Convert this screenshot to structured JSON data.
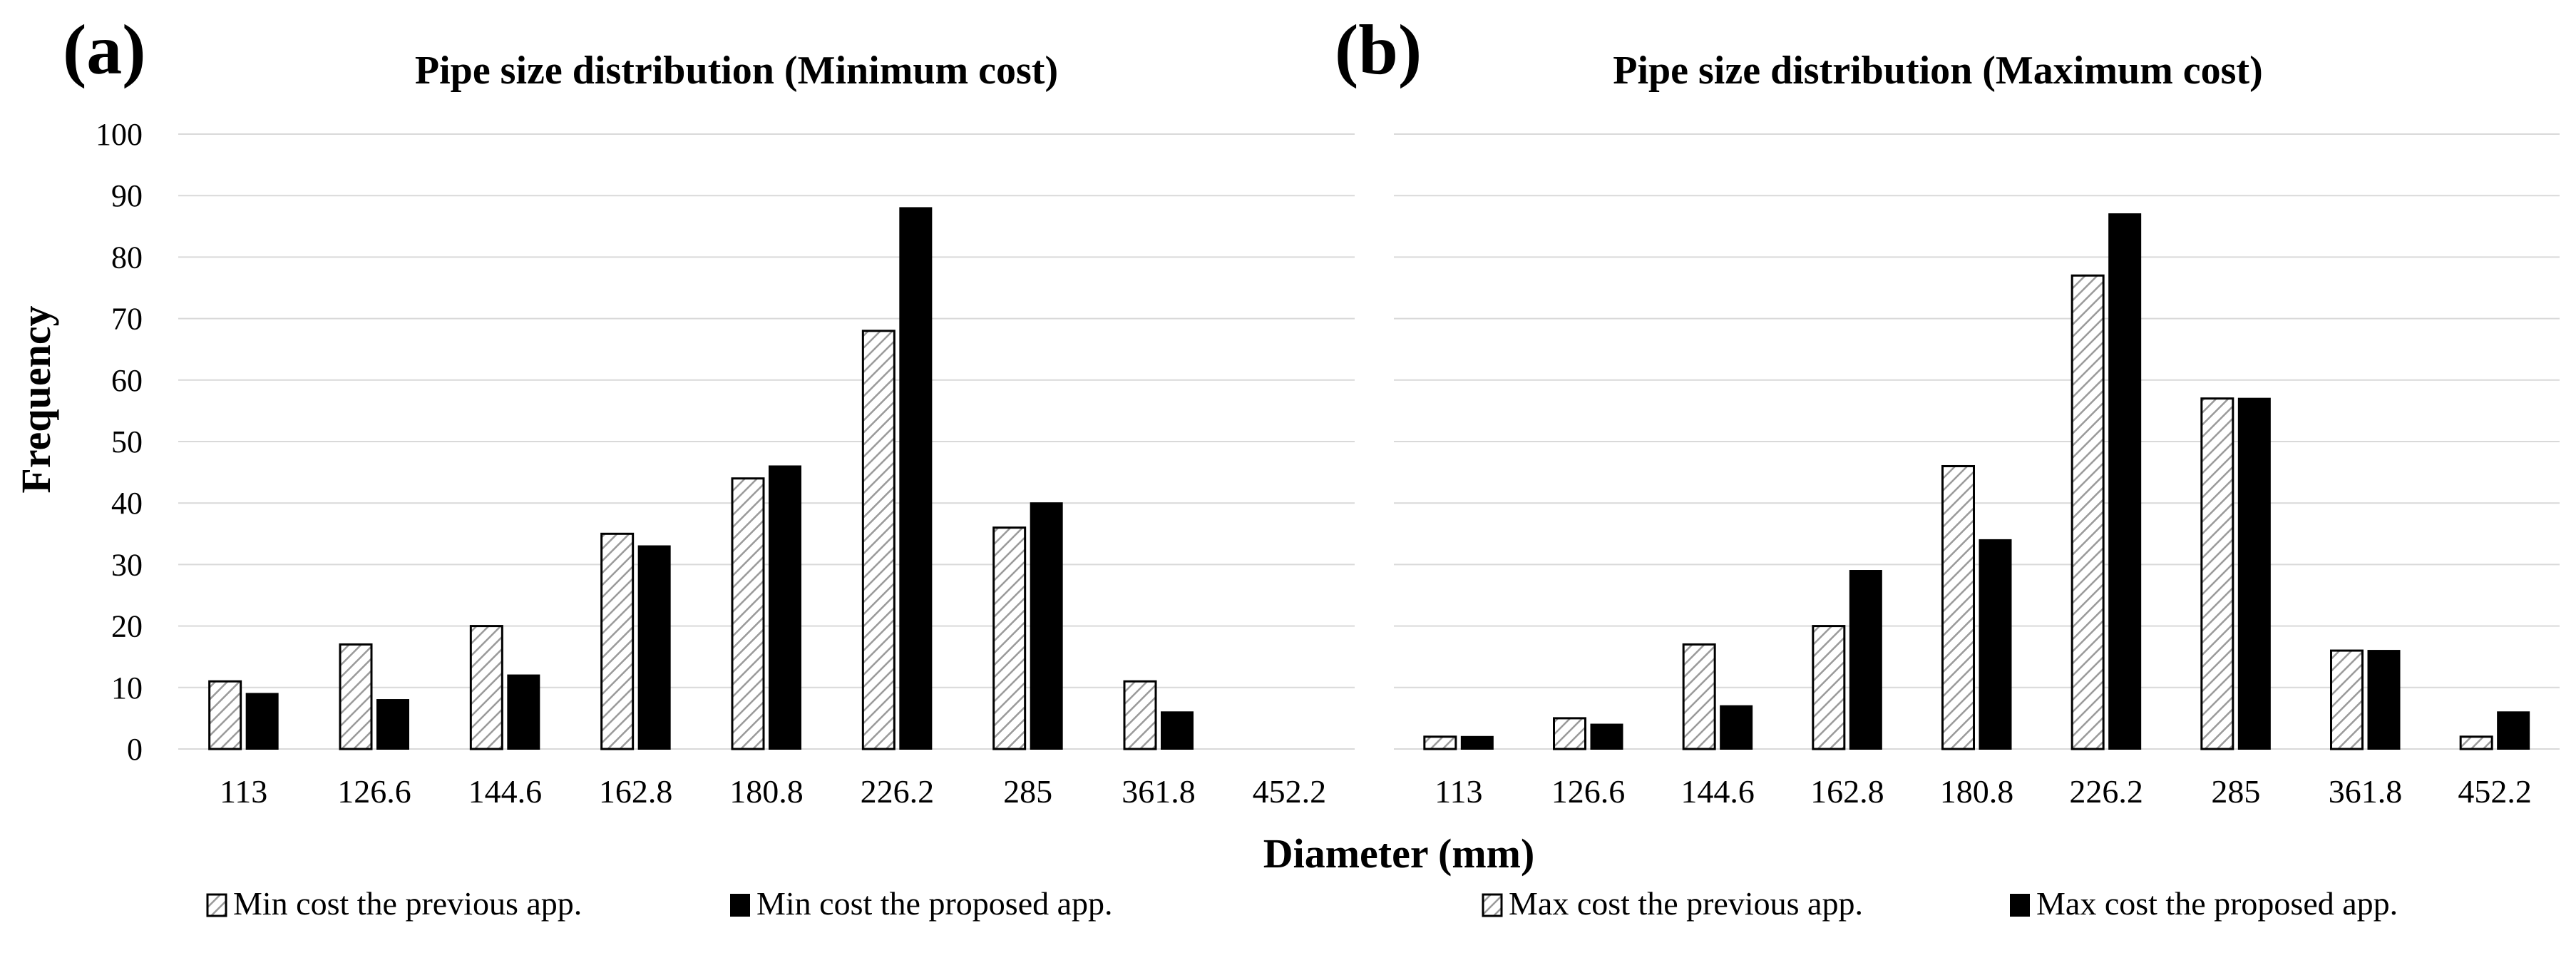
{
  "xlabel": "Diameter (mm)",
  "ylabel": "Frequency",
  "chart_data": [
    {
      "type": "bar",
      "panel": "(a)",
      "title": "Pipe size distribution (Minimum cost)",
      "categories": [
        "113",
        "126.6",
        "144.6",
        "162.8",
        "180.8",
        "226.2",
        "285",
        "361.8",
        "452.2"
      ],
      "series": [
        {
          "name": "Min cost the previous app.",
          "style": "hatched",
          "values": [
            11,
            17,
            20,
            35,
            44,
            68,
            36,
            11,
            0
          ]
        },
        {
          "name": "Min cost the proposed app.",
          "style": "solid",
          "values": [
            9,
            8,
            12,
            33,
            46,
            88,
            40,
            6,
            0
          ]
        }
      ],
      "ylim": [
        0,
        100
      ],
      "yticks": [
        0,
        10,
        20,
        30,
        40,
        50,
        60,
        70,
        80,
        90,
        100
      ],
      "grid": true,
      "legend_position": "bottom"
    },
    {
      "type": "bar",
      "panel": "(b)",
      "title": "Pipe size distribution (Maximum cost)",
      "categories": [
        "113",
        "126.6",
        "144.6",
        "162.8",
        "180.8",
        "226.2",
        "285",
        "361.8",
        "452.2"
      ],
      "series": [
        {
          "name": "Max cost the previous app.",
          "style": "hatched",
          "values": [
            2,
            5,
            17,
            20,
            46,
            77,
            57,
            16,
            2
          ]
        },
        {
          "name": "Max cost the proposed app.",
          "style": "solid",
          "values": [
            2,
            4,
            7,
            29,
            34,
            87,
            57,
            16,
            6
          ]
        }
      ],
      "ylim": [
        0,
        100
      ],
      "grid": true,
      "legend_position": "bottom"
    }
  ]
}
